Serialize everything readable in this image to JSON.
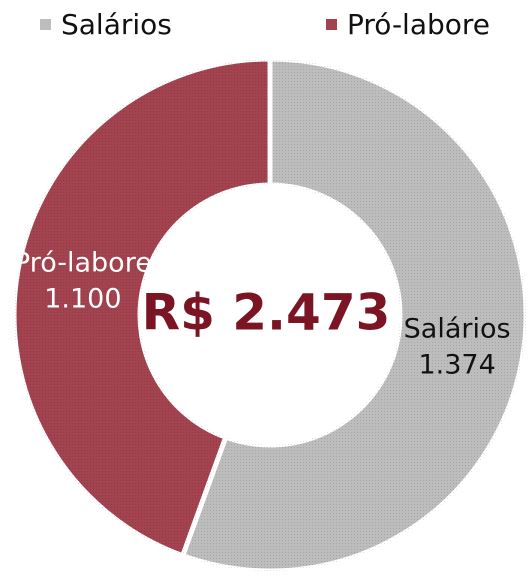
{
  "chart_data": {
    "type": "donut",
    "categories": [
      "Salários",
      "Pró-labore"
    ],
    "values": [
      1374,
      1100
    ],
    "value_labels": [
      "1.374",
      "1.100"
    ],
    "colors": [
      "#bdbdbd",
      "#a3434f"
    ],
    "annotation": "R$ 2.473",
    "legend": "top"
  }
}
